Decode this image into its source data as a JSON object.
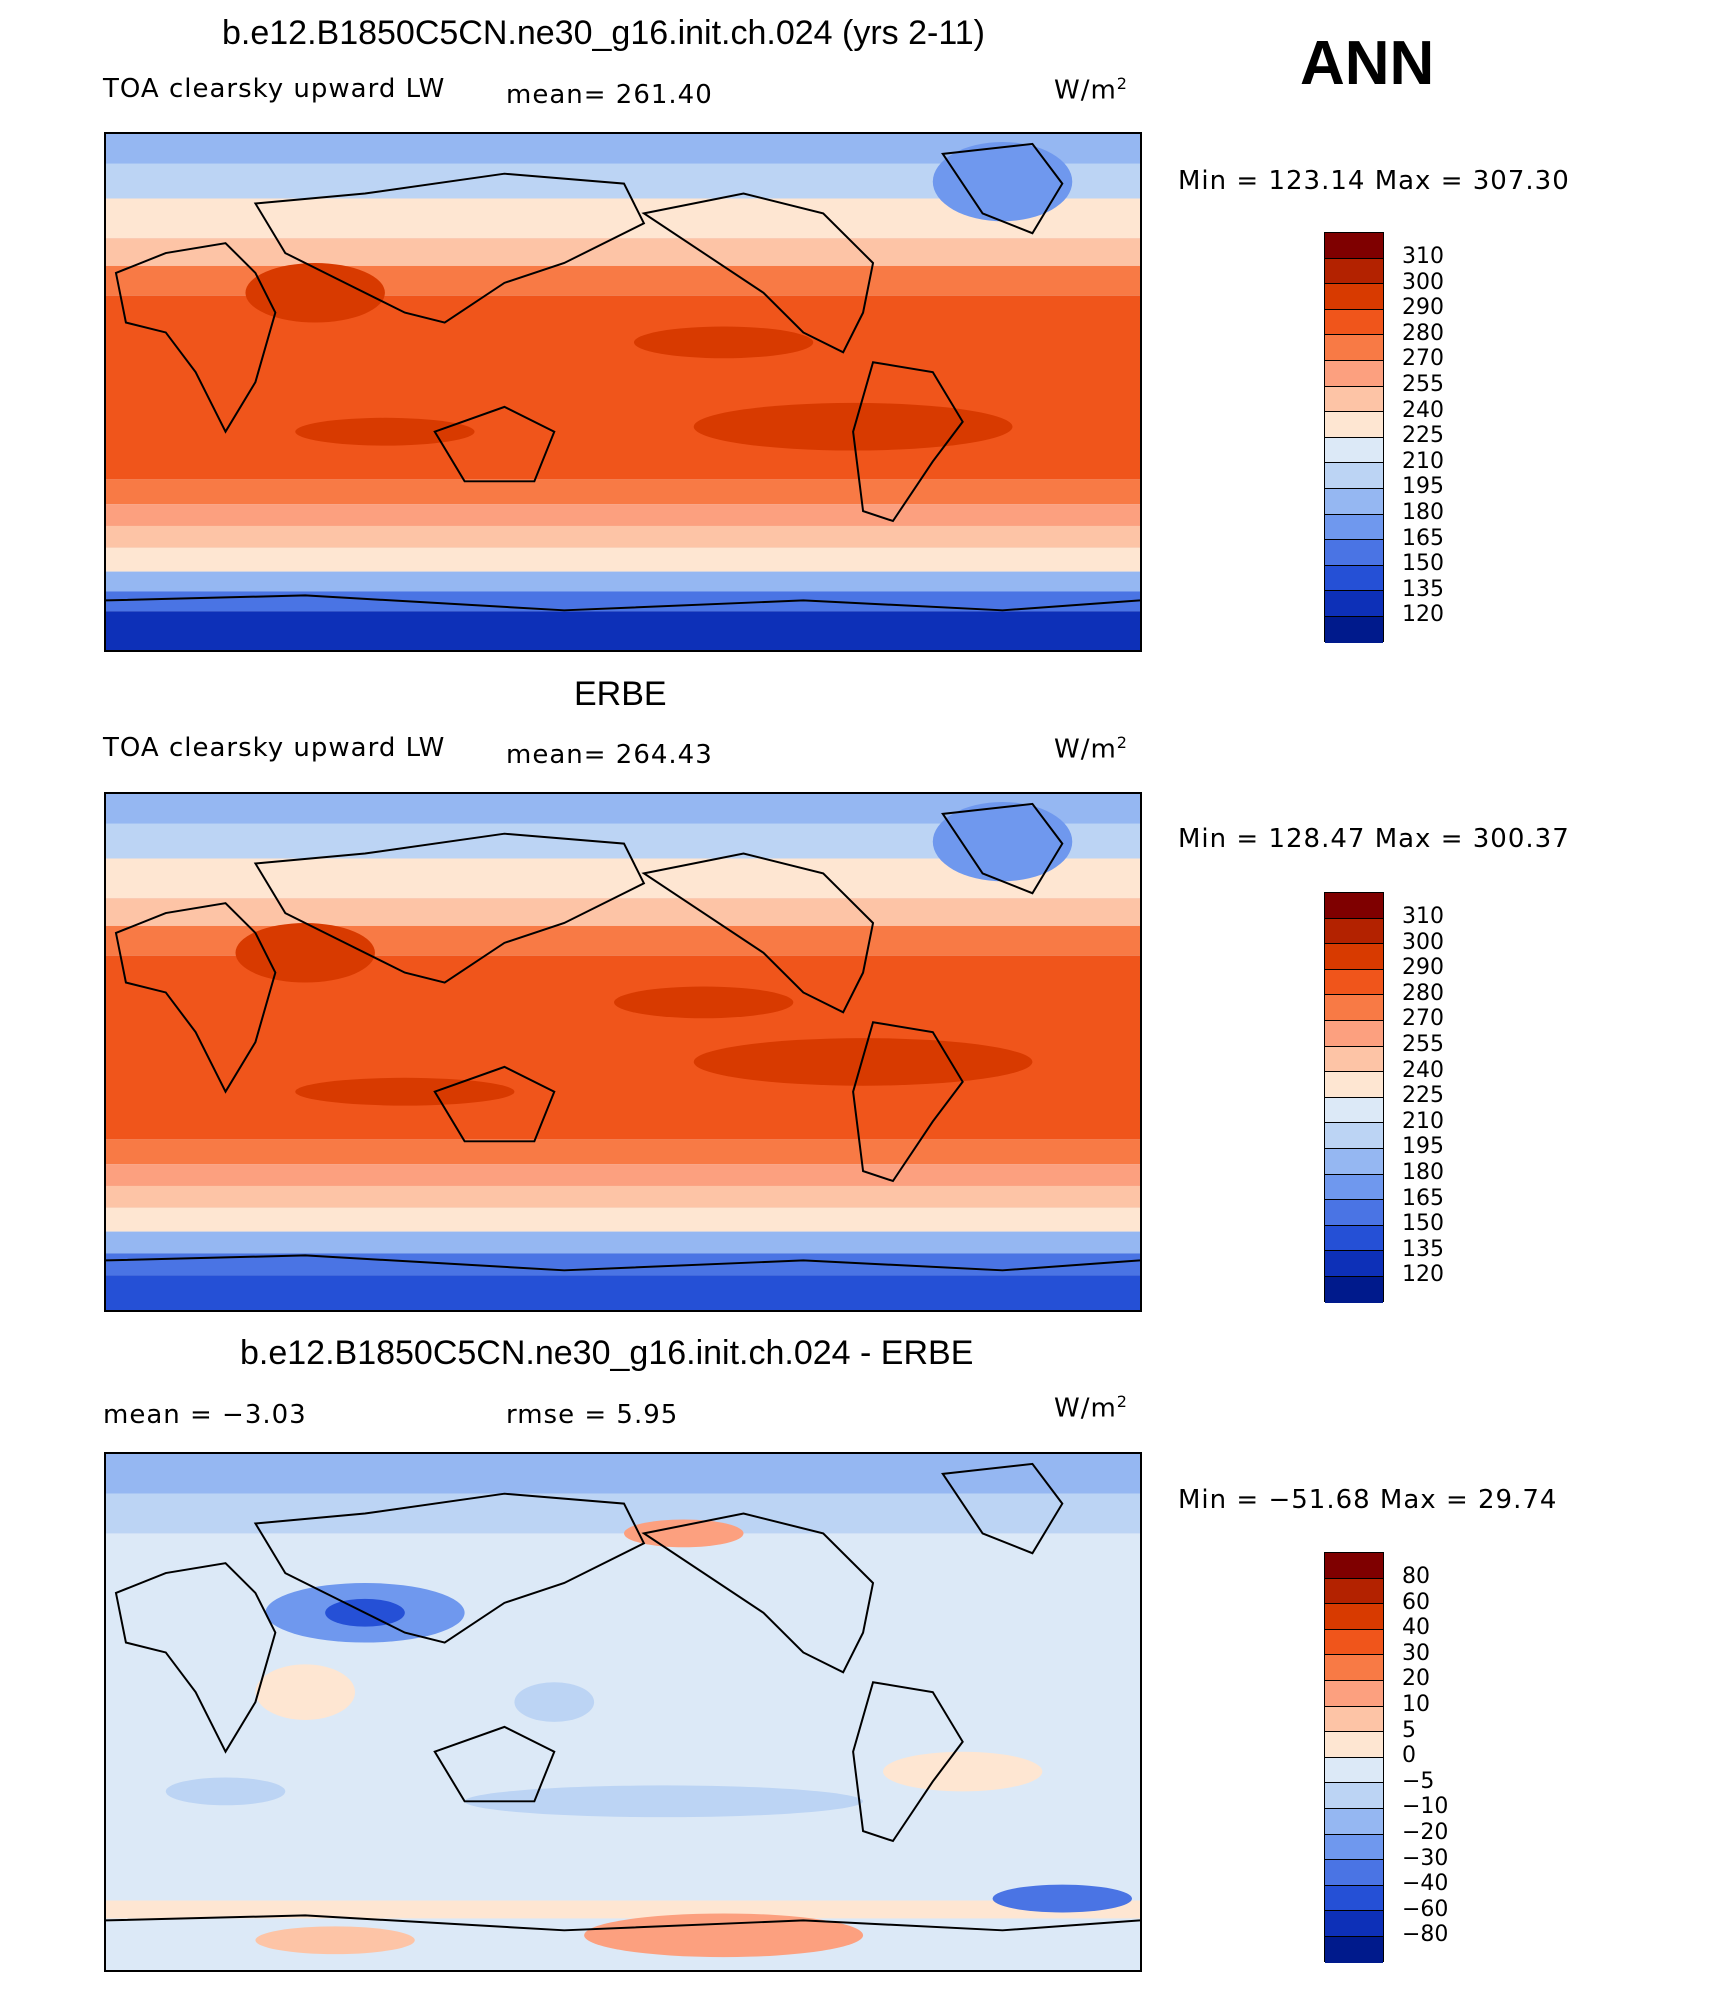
{
  "season": "ANN",
  "panels": [
    {
      "case": "b.e12.B1850C5CN.ne30_g16.init.ch.024 (yrs 2-11)",
      "variable": "TOA clearsky upward LW",
      "stat1": "mean= 261.40",
      "units": "W/m",
      "units_sup": "2",
      "minmax": "Min  =  123.14  Max  =  307.30",
      "levels": [
        "310",
        "300",
        "290",
        "280",
        "270",
        "255",
        "240",
        "225",
        "210",
        "195",
        "180",
        "165",
        "150",
        "135",
        "120"
      ]
    },
    {
      "case": "ERBE",
      "variable": "TOA clearsky upward LW",
      "stat1": "mean= 264.43",
      "units": "W/m",
      "units_sup": "2",
      "minmax": "Min  =  128.47  Max  =  300.37",
      "levels": [
        "310",
        "300",
        "290",
        "280",
        "270",
        "255",
        "240",
        "225",
        "210",
        "195",
        "180",
        "165",
        "150",
        "135",
        "120"
      ]
    },
    {
      "case": "b.e12.B1850C5CN.ne30_g16.init.ch.024 - ERBE",
      "stat_mean": "mean  =    −3.03",
      "stat_rmse": "rmse  =     5.95",
      "units": "W/m",
      "units_sup": "2",
      "minmax": "Min  =  −51.68  Max  =    29.74",
      "levels": [
        "80",
        "60",
        "40",
        "30",
        "20",
        "10",
        "5",
        "0",
        "−5",
        "−10",
        "−20",
        "−30",
        "−40",
        "−60",
        "−80"
      ]
    }
  ],
  "colors": [
    "#7f0000",
    "#b32200",
    "#d83a00",
    "#f0551b",
    "#f87a45",
    "#fca07f",
    "#fdc4a6",
    "#fee6d2",
    "#dce9f7",
    "#bcd4f4",
    "#95b7f2",
    "#6f98ee",
    "#4a74e4",
    "#2550d6",
    "#0d30b8",
    "#001a8c"
  ],
  "colors_diff": [
    "#7f0000",
    "#b32200",
    "#d83a00",
    "#f0551b",
    "#f87a45",
    "#fca07f",
    "#fdc4a6",
    "#fee6d2",
    "#dce9f7",
    "#bcd4f4",
    "#95b7f2",
    "#6f98ee",
    "#4a74e4",
    "#2550d6",
    "#0d30b8",
    "#001a8c"
  ]
}
